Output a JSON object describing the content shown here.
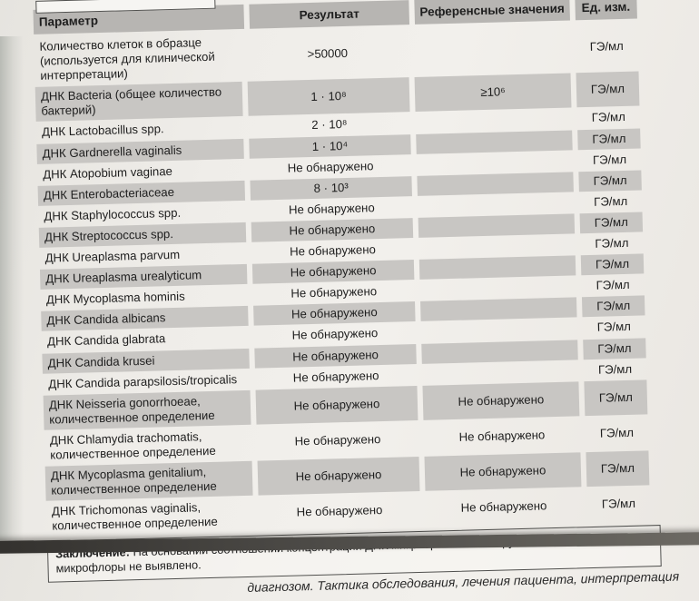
{
  "page": {
    "conclusion_label": "Заключение:",
    "conclusion_text": " На основании соотношений концентраций ДНК микроорганизмов нарушений баланса микрофлоры не выявлено.",
    "footer_fragment": "диагнозом. Тактика обследования, лечения пациента, интерпретация"
  },
  "table": {
    "headers": [
      "Параметр",
      "Результат",
      "Референсные значения",
      "Ед. изм."
    ],
    "rows": [
      {
        "param": "Количество клеток в образце (используется для клинической интерпретации)",
        "result": ">50000",
        "reference": "",
        "unit": "ГЭ/мл",
        "shaded": false
      },
      {
        "param": "ДНК Bacteria (общее количество бактерий)",
        "result": "1 · 10⁸",
        "reference": "≥10⁶",
        "unit": "ГЭ/мл",
        "shaded": true
      },
      {
        "param": "ДНК Lactobacillus spp.",
        "result": "2 · 10⁸",
        "reference": "",
        "unit": "ГЭ/мл",
        "shaded": false
      },
      {
        "param": "ДНК Gardnerella vaginalis",
        "result": "1 · 10⁴",
        "reference": "",
        "unit": "ГЭ/мл",
        "shaded": true
      },
      {
        "param": "ДНК Atopobium vaginae",
        "result": "Не обнаружено",
        "reference": "",
        "unit": "ГЭ/мл",
        "shaded": false
      },
      {
        "param": "ДНК Enterobacteriaceae",
        "result": "8 · 10³",
        "reference": "",
        "unit": "ГЭ/мл",
        "shaded": true
      },
      {
        "param": "ДНК Staphylococcus spp.",
        "result": "Не обнаружено",
        "reference": "",
        "unit": "ГЭ/мл",
        "shaded": false
      },
      {
        "param": "ДНК Streptococcus spp.",
        "result": "Не обнаружено",
        "reference": "",
        "unit": "ГЭ/мл",
        "shaded": true
      },
      {
        "param": "ДНК Ureaplasma parvum",
        "result": "Не обнаружено",
        "reference": "",
        "unit": "ГЭ/мл",
        "shaded": false
      },
      {
        "param": "ДНК Ureaplasma urealyticum",
        "result": "Не обнаружено",
        "reference": "",
        "unit": "ГЭ/мл",
        "shaded": true
      },
      {
        "param": "ДНК Mycoplasma hominis",
        "result": "Не обнаружено",
        "reference": "",
        "unit": "ГЭ/мл",
        "shaded": false
      },
      {
        "param": "ДНК Candida albicans",
        "result": "Не обнаружено",
        "reference": "",
        "unit": "ГЭ/мл",
        "shaded": true
      },
      {
        "param": "ДНК Candida glabrata",
        "result": "Не обнаружено",
        "reference": "",
        "unit": "ГЭ/мл",
        "shaded": false
      },
      {
        "param": "ДНК Candida krusei",
        "result": "Не обнаружено",
        "reference": "",
        "unit": "ГЭ/мл",
        "shaded": true
      },
      {
        "param": "ДНК Candida parapsilosis/tropicalis",
        "result": "Не обнаружено",
        "reference": "",
        "unit": "ГЭ/мл",
        "shaded": false
      },
      {
        "param": "ДНК Neisseria gonorrhoeae, количественное определение",
        "result": "Не обнаружено",
        "reference": "Не обнаружено",
        "unit": "ГЭ/мл",
        "shaded": true
      },
      {
        "param": "ДНК Chlamydia trachomatis, количественное определение",
        "result": "Не обнаружено",
        "reference": "Не обнаружено",
        "unit": "ГЭ/мл",
        "shaded": false
      },
      {
        "param": "ДНК Mycoplasma genitalium, количественное определение",
        "result": "Не обнаружено",
        "reference": "Не обнаружено",
        "unit": "ГЭ/мл",
        "shaded": true
      },
      {
        "param": "ДНК Trichomonas vaginalis, количественное определение",
        "result": "Не обнаружено",
        "reference": "Не обнаружено",
        "unit": "ГЭ/мл",
        "shaded": false
      }
    ]
  },
  "colors": {
    "header_grey": "#b7b5b2",
    "row_grey": "#c8c6c3",
    "paper": "#f0eeea",
    "text": "#1e1e1e"
  }
}
